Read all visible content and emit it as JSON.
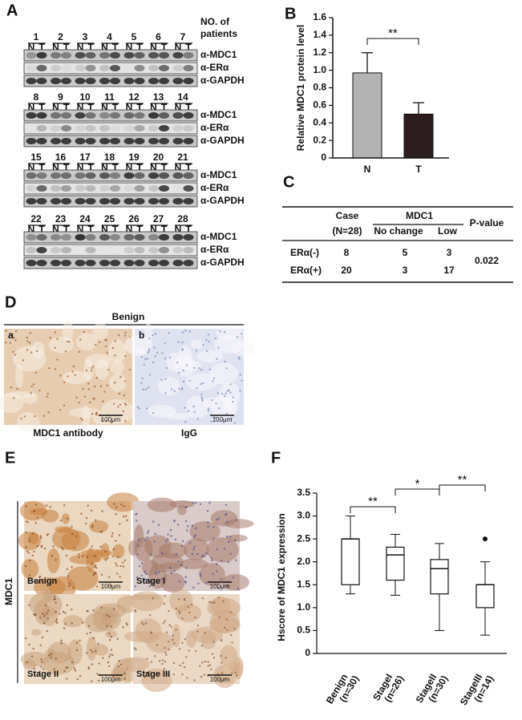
{
  "panel_labels": [
    "A",
    "B",
    "C",
    "D",
    "E",
    "F"
  ],
  "blot": {
    "header": [
      "NO. of",
      "patients"
    ],
    "patients": [
      1,
      2,
      3,
      4,
      5,
      6,
      7,
      8,
      9,
      10,
      11,
      12,
      13,
      14,
      15,
      16,
      17,
      18,
      19,
      20,
      21,
      22,
      23,
      24,
      25,
      26,
      27,
      28
    ],
    "lane_labels": [
      "N",
      "T"
    ],
    "rows": [
      "α-MDC1",
      "α-ERα",
      "α-GAPDH"
    ]
  },
  "table": {
    "header": {
      "case": [
        "Case",
        "(N=28)"
      ],
      "group": "MDC1",
      "subgroups": [
        "No change",
        "Low"
      ],
      "p": "P-value"
    },
    "rows": [
      [
        "ERα(-)",
        8,
        5,
        3
      ],
      [
        "ERα(+)",
        20,
        3,
        17
      ]
    ],
    "p_value": 0.022
  },
  "panel_d": {
    "title": "Benign",
    "images": [
      {
        "letter": "a",
        "scale": "100μm",
        "caption": "MDC1 antibody"
      },
      {
        "letter": "b",
        "scale": "100μm",
        "caption": "IgG"
      }
    ]
  },
  "panel_e": {
    "side_label": "MDC1",
    "images": [
      {
        "label": "Benign",
        "scale": "100μm"
      },
      {
        "label": "Stage I",
        "scale": "100μm"
      },
      {
        "label": "Stage II",
        "scale": "100μm"
      },
      {
        "label": "Stage III",
        "scale": "100μm"
      }
    ]
  },
  "chart_data": [
    {
      "type": "bar",
      "ylabel": "Relative MDC1 protein level",
      "categories": [
        "N",
        "T"
      ],
      "values": [
        0.97,
        0.5
      ],
      "errors": [
        0.23,
        0.13
      ],
      "colors": [
        "#b3b3b3",
        "#2b1d1d"
      ],
      "ylim": [
        0,
        1.6
      ],
      "yticks": [
        0,
        0.2,
        0.4,
        0.6,
        0.8,
        {
          "value": 1,
          "label": "1.0"
        },
        1.2,
        1.4,
        1.6
      ],
      "annotations": [
        "**"
      ]
    },
    {
      "type": "box",
      "ylabel": "Hscore of MDC1 expression",
      "categories": [
        "Benign",
        "StageI",
        "StageII",
        "StageIII"
      ],
      "n_labels": [
        "(n=30)",
        "(n=26)",
        "(n=30)",
        "(n=14)"
      ],
      "boxes": [
        {
          "whislo": 1.3,
          "q1": 1.5,
          "med": 2.5,
          "q3": 2.5,
          "whishi": 3.0,
          "fliers": []
        },
        {
          "whislo": 1.27,
          "q1": 1.6,
          "med": 2.15,
          "q3": 2.32,
          "whishi": 2.6,
          "fliers": []
        },
        {
          "whislo": 0.5,
          "q1": 1.3,
          "med": 1.85,
          "q3": 2.05,
          "whishi": 2.4,
          "fliers": []
        },
        {
          "whislo": 0.4,
          "q1": 1.0,
          "med": 1.5,
          "q3": 1.5,
          "whishi": 2.0,
          "fliers": [
            2.5
          ]
        }
      ],
      "ylim": [
        0,
        3.5
      ],
      "yticks": [
        0,
        0.5,
        {
          "value": 1,
          "label": "1.0"
        },
        1.5,
        {
          "value": 2,
          "label": "2.0"
        },
        2.5,
        {
          "value": 3,
          "label": "3.0"
        },
        3.5
      ],
      "annotations": [
        "**",
        "*",
        "**"
      ]
    }
  ]
}
